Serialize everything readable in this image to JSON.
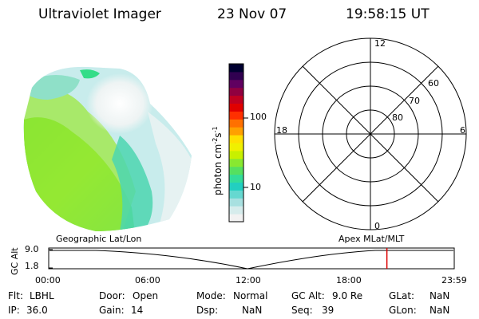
{
  "header": {
    "instrument": "Ultraviolet Imager",
    "date": "23 Nov 07",
    "time": "19:58:15 UT"
  },
  "colorbar": {
    "label": "photon cm",
    "label_sup1": "-2",
    "label_s": "s",
    "label_sup2": "-1",
    "ticks": [
      "100",
      "10"
    ],
    "tick_values": [
      100,
      10
    ],
    "colors": [
      "#f2f2f2",
      "#d6ecec",
      "#a8e0e0",
      "#66d8d0",
      "#22cfc0",
      "#33dd99",
      "#55e060",
      "#88e830",
      "#c8f000",
      "#f0f000",
      "#ffe000",
      "#ffa000",
      "#ff7000",
      "#ff3000",
      "#e00000",
      "#c00020",
      "#900040",
      "#600060",
      "#300050",
      "#000030"
    ]
  },
  "polar": {
    "labels": {
      "top": "12",
      "left": "18",
      "right": "6",
      "bottom": "0"
    },
    "lat_labels": [
      "60",
      "70",
      "80"
    ]
  },
  "timeline": {
    "ylabel": "GC Alt",
    "yticks": [
      "9.0",
      "1.8"
    ],
    "left_label": "Geographic Lat/Lon",
    "right_label": "Apex MLat/MLT",
    "xticks": [
      "00:00",
      "06:00",
      "12:00",
      "18:00",
      "23:59"
    ],
    "marker_hour": 20.0
  },
  "info": {
    "flt_label": "Flt:",
    "flt_value": "LBHL",
    "ip_label": "IP:",
    "ip_value": "36.0",
    "door_label": "Door:",
    "door_value": "Open",
    "gain_label": "Gain:",
    "gain_value": "14",
    "mode_label": "Mode:",
    "mode_value": "Normal",
    "dsp_label": "Dsp:",
    "dsp_value": "NaN",
    "gcalt_label": "GC Alt:",
    "gcalt_value": "9.0 Re",
    "seq_label": "Seq:",
    "seq_value": "39",
    "glat_label": "GLat:",
    "glat_value": "NaN",
    "glon_label": "GLon:",
    "glon_value": "NaN"
  }
}
